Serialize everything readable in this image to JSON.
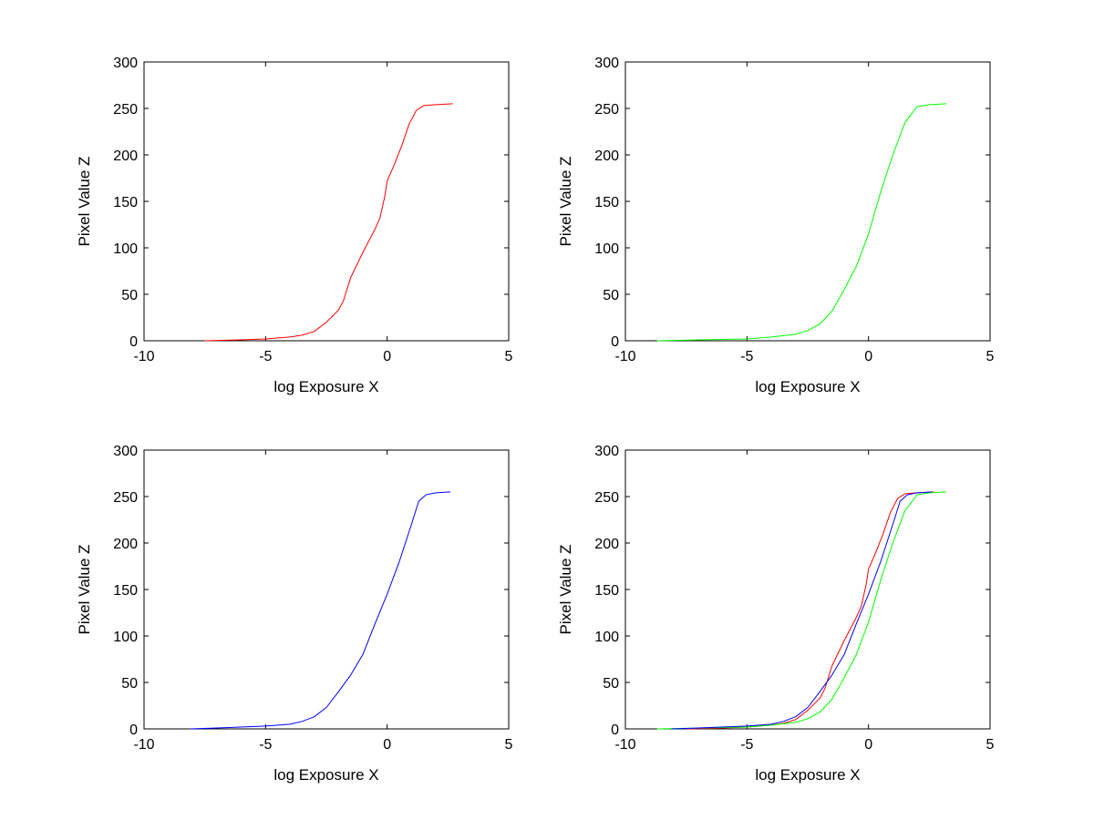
{
  "figure": {
    "background": "#ffffff"
  },
  "chart_data": [
    {
      "type": "line",
      "xlabel": "log Exposure X",
      "ylabel": "Pixel Value Z",
      "xlim": [
        -10,
        5
      ],
      "ylim": [
        0,
        300
      ],
      "xticks": [
        -10,
        -5,
        0,
        5
      ],
      "yticks": [
        0,
        50,
        100,
        150,
        200,
        250,
        300
      ],
      "grid": false,
      "series": [
        {
          "color": "#ff0000",
          "x": [
            -7.5,
            -6,
            -5,
            -4,
            -3.5,
            -3,
            -2.5,
            -2,
            -1.8,
            -1.5,
            -1.0,
            -0.5,
            -0.3,
            -0.1,
            0,
            0.3,
            0.6,
            0.9,
            1.2,
            1.5,
            2.0,
            2.7
          ],
          "y": [
            0,
            1,
            2,
            4,
            6,
            10,
            20,
            33,
            43,
            68,
            95,
            120,
            132,
            155,
            172,
            190,
            210,
            233,
            248,
            253,
            254,
            255
          ]
        }
      ]
    },
    {
      "type": "line",
      "xlabel": "log Exposure X",
      "ylabel": "Pixel Value Z",
      "xlim": [
        -10,
        5
      ],
      "ylim": [
        0,
        300
      ],
      "xticks": [
        -10,
        -5,
        0,
        5
      ],
      "yticks": [
        0,
        50,
        100,
        150,
        200,
        250,
        300
      ],
      "grid": false,
      "series": [
        {
          "color": "#00ff00",
          "x": [
            -8.7,
            -7,
            -5,
            -4,
            -3,
            -2.5,
            -2,
            -1.5,
            -1.0,
            -0.5,
            0,
            0.5,
            1.0,
            1.5,
            2.0,
            2.5,
            3.2
          ],
          "y": [
            0,
            1,
            2,
            4,
            7,
            11,
            18,
            32,
            55,
            80,
            115,
            160,
            200,
            235,
            252,
            254,
            255
          ]
        }
      ]
    },
    {
      "type": "line",
      "xlabel": "log Exposure X",
      "ylabel": "Pixel Value Z",
      "xlim": [
        -10,
        5
      ],
      "ylim": [
        0,
        300
      ],
      "xticks": [
        -10,
        -5,
        0,
        5
      ],
      "yticks": [
        0,
        50,
        100,
        150,
        200,
        250,
        300
      ],
      "grid": false,
      "series": [
        {
          "color": "#0000ff",
          "x": [
            -8.1,
            -7,
            -5,
            -4,
            -3.5,
            -3,
            -2.5,
            -2,
            -1.5,
            -1.0,
            -0.5,
            0,
            0.5,
            1.0,
            1.3,
            1.6,
            2.0,
            2.6
          ],
          "y": [
            0,
            1,
            3,
            5,
            8,
            13,
            23,
            40,
            58,
            80,
            113,
            145,
            180,
            220,
            245,
            252,
            254,
            255
          ]
        }
      ]
    },
    {
      "type": "line",
      "xlabel": "log Exposure X",
      "ylabel": "Pixel Value Z",
      "xlim": [
        -10,
        5
      ],
      "ylim": [
        0,
        300
      ],
      "xticks": [
        -10,
        -5,
        0,
        5
      ],
      "yticks": [
        0,
        50,
        100,
        150,
        200,
        250,
        300
      ],
      "grid": false,
      "series": [
        {
          "color": "#ff0000",
          "x": [
            -7.5,
            -6,
            -5,
            -4,
            -3.5,
            -3,
            -2.5,
            -2,
            -1.8,
            -1.5,
            -1.0,
            -0.5,
            -0.3,
            -0.1,
            0,
            0.3,
            0.6,
            0.9,
            1.2,
            1.5,
            2.0,
            2.7
          ],
          "y": [
            0,
            1,
            2,
            4,
            6,
            10,
            20,
            33,
            43,
            68,
            95,
            120,
            132,
            155,
            172,
            190,
            210,
            233,
            248,
            253,
            254,
            255
          ]
        },
        {
          "color": "#00ff00",
          "x": [
            -8.7,
            -7,
            -5,
            -4,
            -3,
            -2.5,
            -2,
            -1.5,
            -1.0,
            -0.5,
            0,
            0.5,
            1.0,
            1.5,
            2.0,
            2.5,
            3.2
          ],
          "y": [
            0,
            1,
            2,
            4,
            7,
            11,
            18,
            32,
            55,
            80,
            115,
            160,
            200,
            235,
            252,
            254,
            255
          ]
        },
        {
          "color": "#0000ff",
          "x": [
            -8.1,
            -7,
            -5,
            -4,
            -3.5,
            -3,
            -2.5,
            -2,
            -1.5,
            -1.0,
            -0.5,
            0,
            0.5,
            1.0,
            1.3,
            1.6,
            2.0,
            2.6
          ],
          "y": [
            0,
            1,
            3,
            5,
            8,
            13,
            23,
            40,
            58,
            80,
            113,
            145,
            180,
            220,
            245,
            252,
            254,
            255
          ]
        }
      ]
    }
  ]
}
